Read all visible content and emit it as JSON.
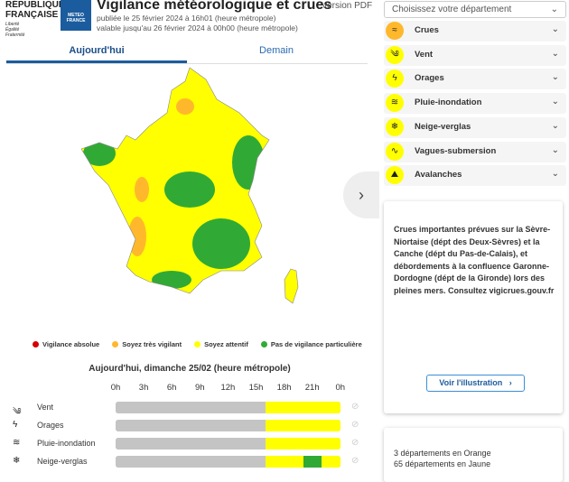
{
  "header": {
    "republique": [
      "RÉPUBLIQUE",
      "FRANÇAISE"
    ],
    "motto": [
      "Liberté",
      "Égalité",
      "Fraternité"
    ],
    "mf_logo": "METEO FRANCE",
    "title": "Vigilance météorologique et crues",
    "published": "publiée le 25 février 2024 à 16h01 (heure métropole)",
    "valid": "valable jusqu'au 26 février 2024 à 00h00 (heure métropole)",
    "pdf": "Version PDF"
  },
  "tabs": [
    {
      "label": "Aujourd'hui",
      "active": true
    },
    {
      "label": "Demain",
      "active": false
    }
  ],
  "legend": [
    {
      "label": "Vigilance absolue",
      "color": "#d40000"
    },
    {
      "label": "Soyez très vigilant",
      "color": "#ffb82b"
    },
    {
      "label": "Soyez attentif",
      "color": "#ffff00"
    },
    {
      "label": "Pas de vigilance particulière",
      "color": "#31aa35"
    }
  ],
  "timeline": {
    "title": "Aujourd'hui, dimanche 25/02 (heure métropole)",
    "hours": [
      "0h",
      "3h",
      "6h",
      "9h",
      "12h",
      "15h",
      "18h",
      "21h",
      "0h"
    ],
    "rows": [
      {
        "label": "Vent",
        "icon": "wind-icon",
        "segments": [
          {
            "from": 0,
            "to": 16,
            "level": "none"
          },
          {
            "from": 16,
            "to": 24,
            "level": "yellow"
          }
        ]
      },
      {
        "label": "Orages",
        "icon": "thunderstorm-icon",
        "segments": [
          {
            "from": 0,
            "to": 16,
            "level": "none"
          },
          {
            "from": 16,
            "to": 24,
            "level": "yellow"
          }
        ]
      },
      {
        "label": "Pluie-inondation",
        "icon": "rain-flood-icon",
        "segments": [
          {
            "from": 0,
            "to": 16,
            "level": "none"
          },
          {
            "from": 16,
            "to": 24,
            "level": "yellow"
          }
        ]
      },
      {
        "label": "Neige-verglas",
        "icon": "snow-ice-icon",
        "segments": [
          {
            "from": 0,
            "to": 16,
            "level": "none"
          },
          {
            "from": 16,
            "to": 20,
            "level": "yellow"
          },
          {
            "from": 20,
            "to": 22,
            "level": "green"
          },
          {
            "from": 22,
            "to": 24,
            "level": "yellow"
          }
        ]
      }
    ]
  },
  "colors": {
    "none": "#c4c4c4",
    "yellow": "#ffff00",
    "green": "#31aa35",
    "orange": "#ffb82b"
  },
  "sidebar": {
    "select_placeholder": "Choisissez votre département",
    "phenomena": [
      {
        "label": "Crues",
        "level": "orange",
        "icon": "flood-icon"
      },
      {
        "label": "Vent",
        "level": "yellow",
        "icon": "wind-icon"
      },
      {
        "label": "Orages",
        "level": "yellow",
        "icon": "thunderstorm-icon"
      },
      {
        "label": "Pluie-inondation",
        "level": "yellow",
        "icon": "rain-flood-icon"
      },
      {
        "label": "Neige-verglas",
        "level": "yellow",
        "icon": "snow-ice-icon"
      },
      {
        "label": "Vagues-submersion",
        "level": "yellow",
        "icon": "waves-icon"
      },
      {
        "label": "Avalanches",
        "level": "yellow",
        "icon": "avalanche-icon"
      }
    ],
    "bulletin": "Crues importantes prévues sur la Sèvre-Niortaise (dépt des Deux-Sèvres) et la Canche (dépt du Pas-de-Calais), et débordements à la confluence Garonne-Dordogne (dépt de la Gironde) lors des pleines mers. Consultez vigicrues.gouv.fr",
    "illustration_button": "Voir l'illustration",
    "counts": [
      "3 départements en Orange",
      "65 départements en Jaune"
    ]
  }
}
